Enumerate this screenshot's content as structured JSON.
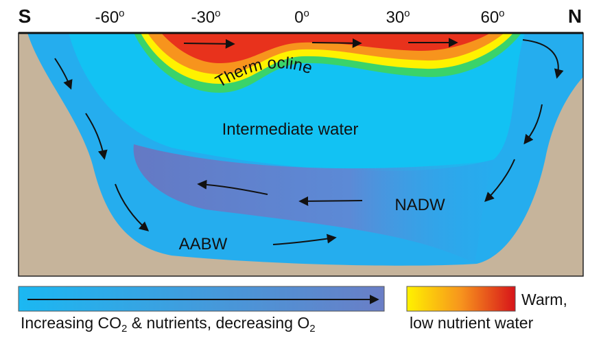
{
  "compass": {
    "south": "S",
    "north": "N"
  },
  "latitudes": [
    {
      "text": "-60",
      "sup": "o"
    },
    {
      "text": "-30",
      "sup": "o"
    },
    {
      "text": "0",
      "sup": "o"
    },
    {
      "text": "30",
      "sup": "o"
    },
    {
      "text": "60",
      "sup": "o"
    }
  ],
  "labels": {
    "thermocline": "Therm ocline",
    "intermediate": "Intermediate water",
    "nadw": "NADW",
    "aabw": "AABW"
  },
  "legend": {
    "gradient": {
      "parts": [
        "Increasing CO",
        "2",
        " & nutrients, decreasing O",
        "2"
      ]
    },
    "warm": {
      "line1": "Warm,",
      "line2": "low nutrient water"
    }
  }
}
